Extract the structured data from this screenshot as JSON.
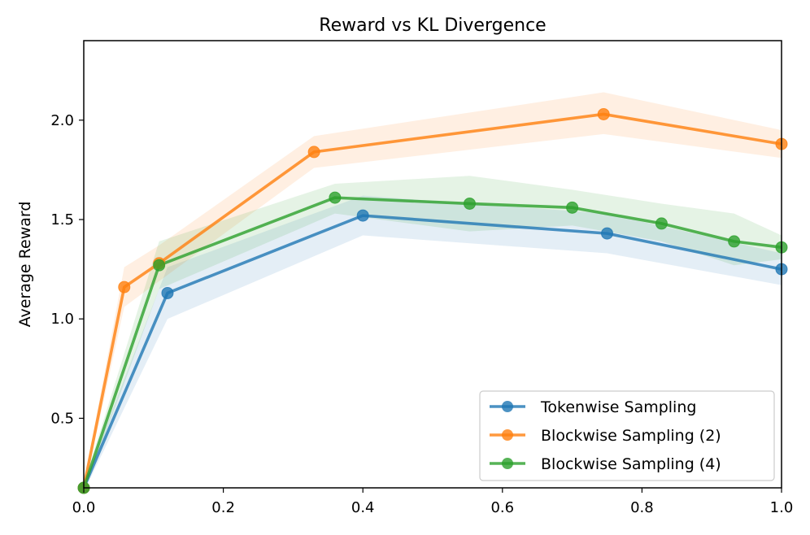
{
  "chart_data": {
    "type": "line",
    "title": "Reward vs KL Divergence",
    "xlabel": "",
    "ylabel": "Average Reward",
    "xlim": [
      0.0,
      1.0
    ],
    "ylim": [
      0.15,
      2.4
    ],
    "grid": false,
    "legend_position": "bottom-right",
    "x_ticks": [
      {
        "value": 0.0,
        "label": "0.0"
      },
      {
        "value": 0.2,
        "label": "0.2"
      },
      {
        "value": 0.4,
        "label": "0.4"
      },
      {
        "value": 0.6,
        "label": "0.6"
      },
      {
        "value": 0.8,
        "label": "0.8"
      },
      {
        "value": 1.0,
        "label": "1.0"
      }
    ],
    "y_ticks": [
      {
        "value": 0.5,
        "label": "0.5"
      },
      {
        "value": 1.0,
        "label": "1.0"
      },
      {
        "value": 1.5,
        "label": "1.5"
      },
      {
        "value": 2.0,
        "label": "2.0"
      }
    ],
    "series": [
      {
        "name": "Tokenwise Sampling",
        "color": "#1f77b4",
        "x": [
          0.0,
          0.12,
          0.4,
          0.75,
          1.0
        ],
        "y": [
          0.15,
          1.13,
          1.52,
          1.43,
          1.25
        ],
        "band_upper": [
          0.17,
          1.26,
          1.62,
          1.53,
          1.33
        ],
        "band_lower": [
          0.13,
          1.0,
          1.42,
          1.33,
          1.17
        ]
      },
      {
        "name": "Blockwise Sampling (2)",
        "color": "#ff7f0e",
        "x": [
          0.0,
          0.058,
          0.108,
          0.33,
          0.745,
          1.0
        ],
        "y": [
          0.15,
          1.16,
          1.28,
          1.84,
          2.03,
          1.88
        ],
        "band_upper": [
          0.17,
          1.26,
          1.37,
          1.92,
          2.14,
          1.95
        ],
        "band_lower": [
          0.13,
          1.06,
          1.19,
          1.76,
          1.93,
          1.81
        ]
      },
      {
        "name": "Blockwise Sampling (4)",
        "color": "#2ca02c",
        "x": [
          0.0,
          0.108,
          0.36,
          0.553,
          0.7,
          0.828,
          0.932,
          1.0
        ],
        "y": [
          0.15,
          1.27,
          1.61,
          1.58,
          1.56,
          1.48,
          1.39,
          1.36
        ],
        "band_upper": [
          0.17,
          1.39,
          1.68,
          1.72,
          1.65,
          1.58,
          1.53,
          1.42
        ],
        "band_lower": [
          0.13,
          1.15,
          1.53,
          1.44,
          1.47,
          1.39,
          1.27,
          1.3
        ]
      }
    ]
  }
}
